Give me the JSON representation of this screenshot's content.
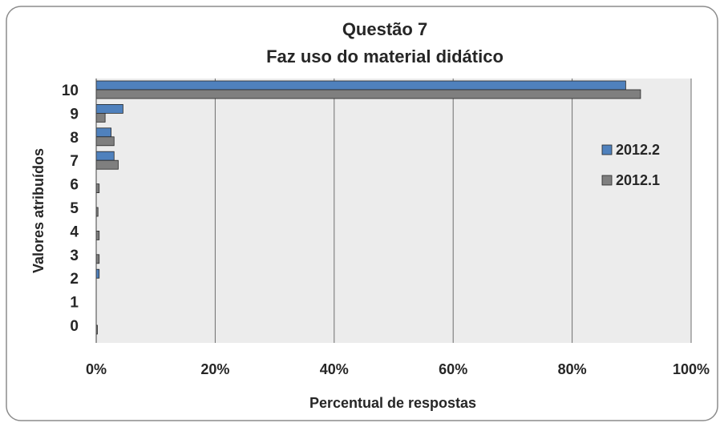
{
  "chart_data": {
    "type": "bar",
    "orientation": "horizontal",
    "title": "Questão  7",
    "subtitle": "Faz uso do material didático",
    "xlabel": "Percentual de respostas",
    "ylabel": "Valores atribuídos",
    "categories": [
      "0",
      "1",
      "2",
      "3",
      "4",
      "5",
      "6",
      "7",
      "8",
      "9",
      "10"
    ],
    "series": [
      {
        "name": "2012.2",
        "color": "#4f81bd",
        "values": [
          0.0,
          0.0,
          0.5,
          0.0,
          0.0,
          0.0,
          0.0,
          3.0,
          2.5,
          4.5,
          89.0
        ]
      },
      {
        "name": "2012.1",
        "color": "#7f7f7f",
        "values": [
          0.2,
          0.0,
          0.0,
          0.5,
          0.5,
          0.3,
          0.5,
          3.7,
          3.0,
          1.5,
          91.5
        ]
      }
    ],
    "xlim": [
      0,
      100
    ],
    "xticks": [
      0,
      20,
      40,
      60,
      80,
      100
    ],
    "xtick_labels": [
      "0%",
      "20%",
      "40%",
      "60%",
      "80%",
      "100%"
    ],
    "grid": "vertical",
    "legend_position": "right"
  }
}
